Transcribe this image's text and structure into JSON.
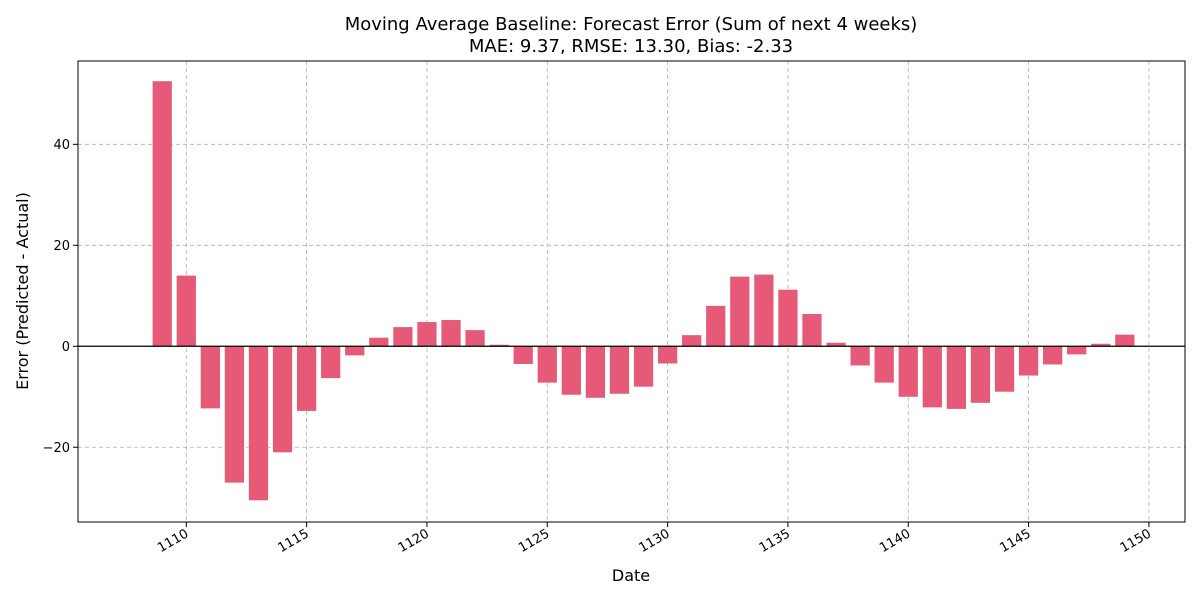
{
  "chart_data": {
    "type": "bar",
    "title": "Moving Average Baseline: Forecast Error (Sum of next 4 weeks)",
    "subtitle": "MAE: 9.37, RMSE: 13.30, Bias: -2.33",
    "xlabel": "Date",
    "ylabel": "Error (Predicted - Actual)",
    "bar_color": "#e75a77",
    "grid": true,
    "xlim": [
      1105.5,
      1151.5
    ],
    "ylim": [
      -34.8,
      56.5
    ],
    "xticks": [
      1110,
      1115,
      1120,
      1125,
      1130,
      1135,
      1140,
      1145,
      1150
    ],
    "yticks": [
      -20,
      0,
      20,
      40
    ],
    "x": [
      1109,
      1110,
      1111,
      1112,
      1113,
      1114,
      1115,
      1116,
      1117,
      1118,
      1119,
      1120,
      1121,
      1122,
      1123,
      1124,
      1125,
      1126,
      1127,
      1128,
      1129,
      1130,
      1131,
      1132,
      1133,
      1134,
      1135,
      1136,
      1137,
      1138,
      1139,
      1140,
      1141,
      1142,
      1143,
      1144,
      1145,
      1146,
      1147,
      1148,
      1149
    ],
    "values": [
      52.5,
      14.0,
      -12.3,
      -27.0,
      -30.5,
      -21.0,
      -12.8,
      -6.3,
      -1.8,
      1.7,
      3.8,
      4.8,
      5.2,
      3.2,
      0.3,
      -3.5,
      -7.2,
      -9.6,
      -10.2,
      -9.4,
      -8.0,
      -3.4,
      2.2,
      8.0,
      13.8,
      14.2,
      11.2,
      6.4,
      0.7,
      -3.8,
      -7.2,
      -10.0,
      -12.1,
      -12.4,
      -11.2,
      -9.0,
      -5.8,
      -3.6,
      -1.6,
      0.5,
      2.3
    ]
  }
}
